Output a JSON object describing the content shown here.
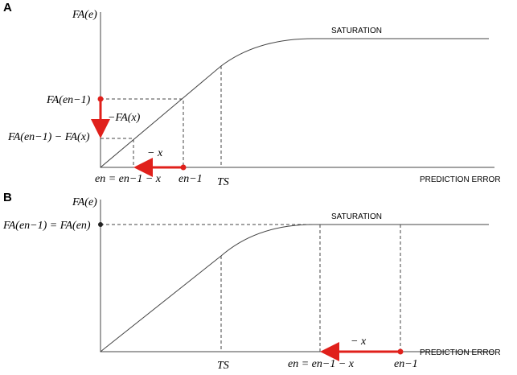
{
  "panel_a": {
    "label": "A",
    "y_axis": "FA(e)",
    "x_axis": "PREDICTION ERROR",
    "saturation": "SATURATION",
    "fa_prev": "FA(en−1)",
    "minus_fa_x": "−FA(x)",
    "fa_diff": "FA(en−1) − FA(x)",
    "minus_x": "− x",
    "en": "en = en−1 − x",
    "en_prev": "en−1",
    "ts": "TS"
  },
  "panel_b": {
    "label": "B",
    "y_axis": "FA(e)",
    "x_axis": "PREDICTION ERROR",
    "saturation": "SATURATION",
    "fa_eq": "FA(en−1) = FA(en)",
    "minus_x": "− x",
    "en": "en = en−1 − x",
    "en_prev": "en−1",
    "ts": "TS"
  }
}
